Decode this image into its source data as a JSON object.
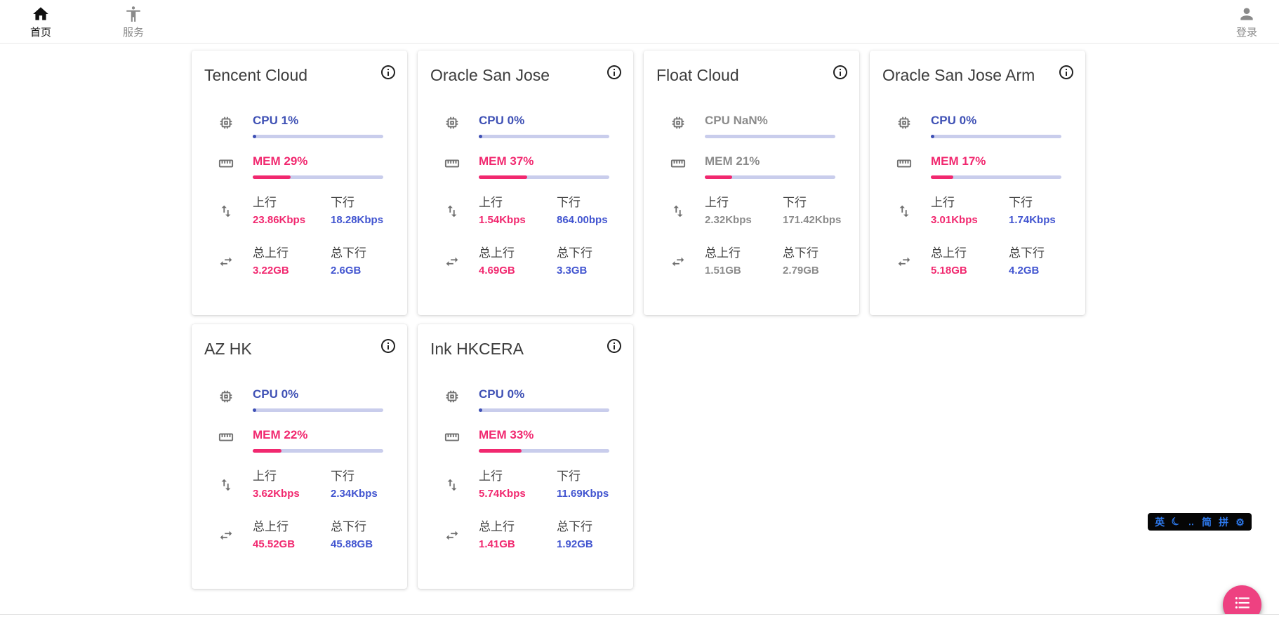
{
  "navbar": {
    "items": [
      {
        "label": "首页",
        "icon": "home-icon",
        "active": true
      },
      {
        "label": "服务",
        "icon": "services-person-icon",
        "active": false
      }
    ],
    "login": {
      "label": "登录",
      "icon": "person-icon"
    }
  },
  "labels": {
    "up": "上行",
    "down": "下行",
    "total_up": "总上行",
    "total_down": "总下行"
  },
  "servers": [
    {
      "name": "Tencent Cloud",
      "cpu_text": "CPU 1%",
      "cpu_pct": 1,
      "mem_text": "MEM 29%",
      "mem_pct": 29,
      "up": "23.86Kbps",
      "down": "18.28Kbps",
      "total_up": "3.22GB",
      "total_down": "2.6GB",
      "muted": false
    },
    {
      "name": "Oracle San Jose",
      "cpu_text": "CPU 0%",
      "cpu_pct": 0,
      "mem_text": "MEM 37%",
      "mem_pct": 37,
      "up": "1.54Kbps",
      "down": "864.00bps",
      "total_up": "4.69GB",
      "total_down": "3.3GB",
      "muted": false
    },
    {
      "name": "Float Cloud",
      "cpu_text": "CPU NaN%",
      "cpu_pct": null,
      "mem_text": "MEM 21%",
      "mem_pct": 21,
      "up": "2.32Kbps",
      "down": "171.42Kbps",
      "total_up": "1.51GB",
      "total_down": "2.79GB",
      "muted": true
    },
    {
      "name": "Oracle San Jose Arm",
      "cpu_text": "CPU 0%",
      "cpu_pct": 0,
      "mem_text": "MEM 17%",
      "mem_pct": 17,
      "up": "3.01Kbps",
      "down": "1.74Kbps",
      "total_up": "5.18GB",
      "total_down": "4.2GB",
      "muted": false
    },
    {
      "name": "AZ HK",
      "cpu_text": "CPU 0%",
      "cpu_pct": 0,
      "mem_text": "MEM 22%",
      "mem_pct": 22,
      "up": "3.62Kbps",
      "down": "2.34Kbps",
      "total_up": "45.52GB",
      "total_down": "45.88GB",
      "muted": false
    },
    {
      "name": "Ink HKCERA",
      "cpu_text": "CPU 0%",
      "cpu_pct": 0,
      "mem_text": "MEM 33%",
      "mem_pct": 33,
      "up": "5.74Kbps",
      "down": "11.69Kbps",
      "total_up": "1.41GB",
      "total_down": "1.92GB",
      "muted": false
    }
  ],
  "colors": {
    "accent_blue": "#3f51b5",
    "accent_pink": "#f1286f",
    "bar_track": "#c9cdec",
    "muted_text": "#8b8b8b",
    "fab_pink": "#ee4181",
    "ime_blue": "#2e7bf0"
  },
  "ime_bar": {
    "items": [
      "英",
      "☾",
      "‥",
      "简",
      "拼",
      "⚙"
    ]
  }
}
